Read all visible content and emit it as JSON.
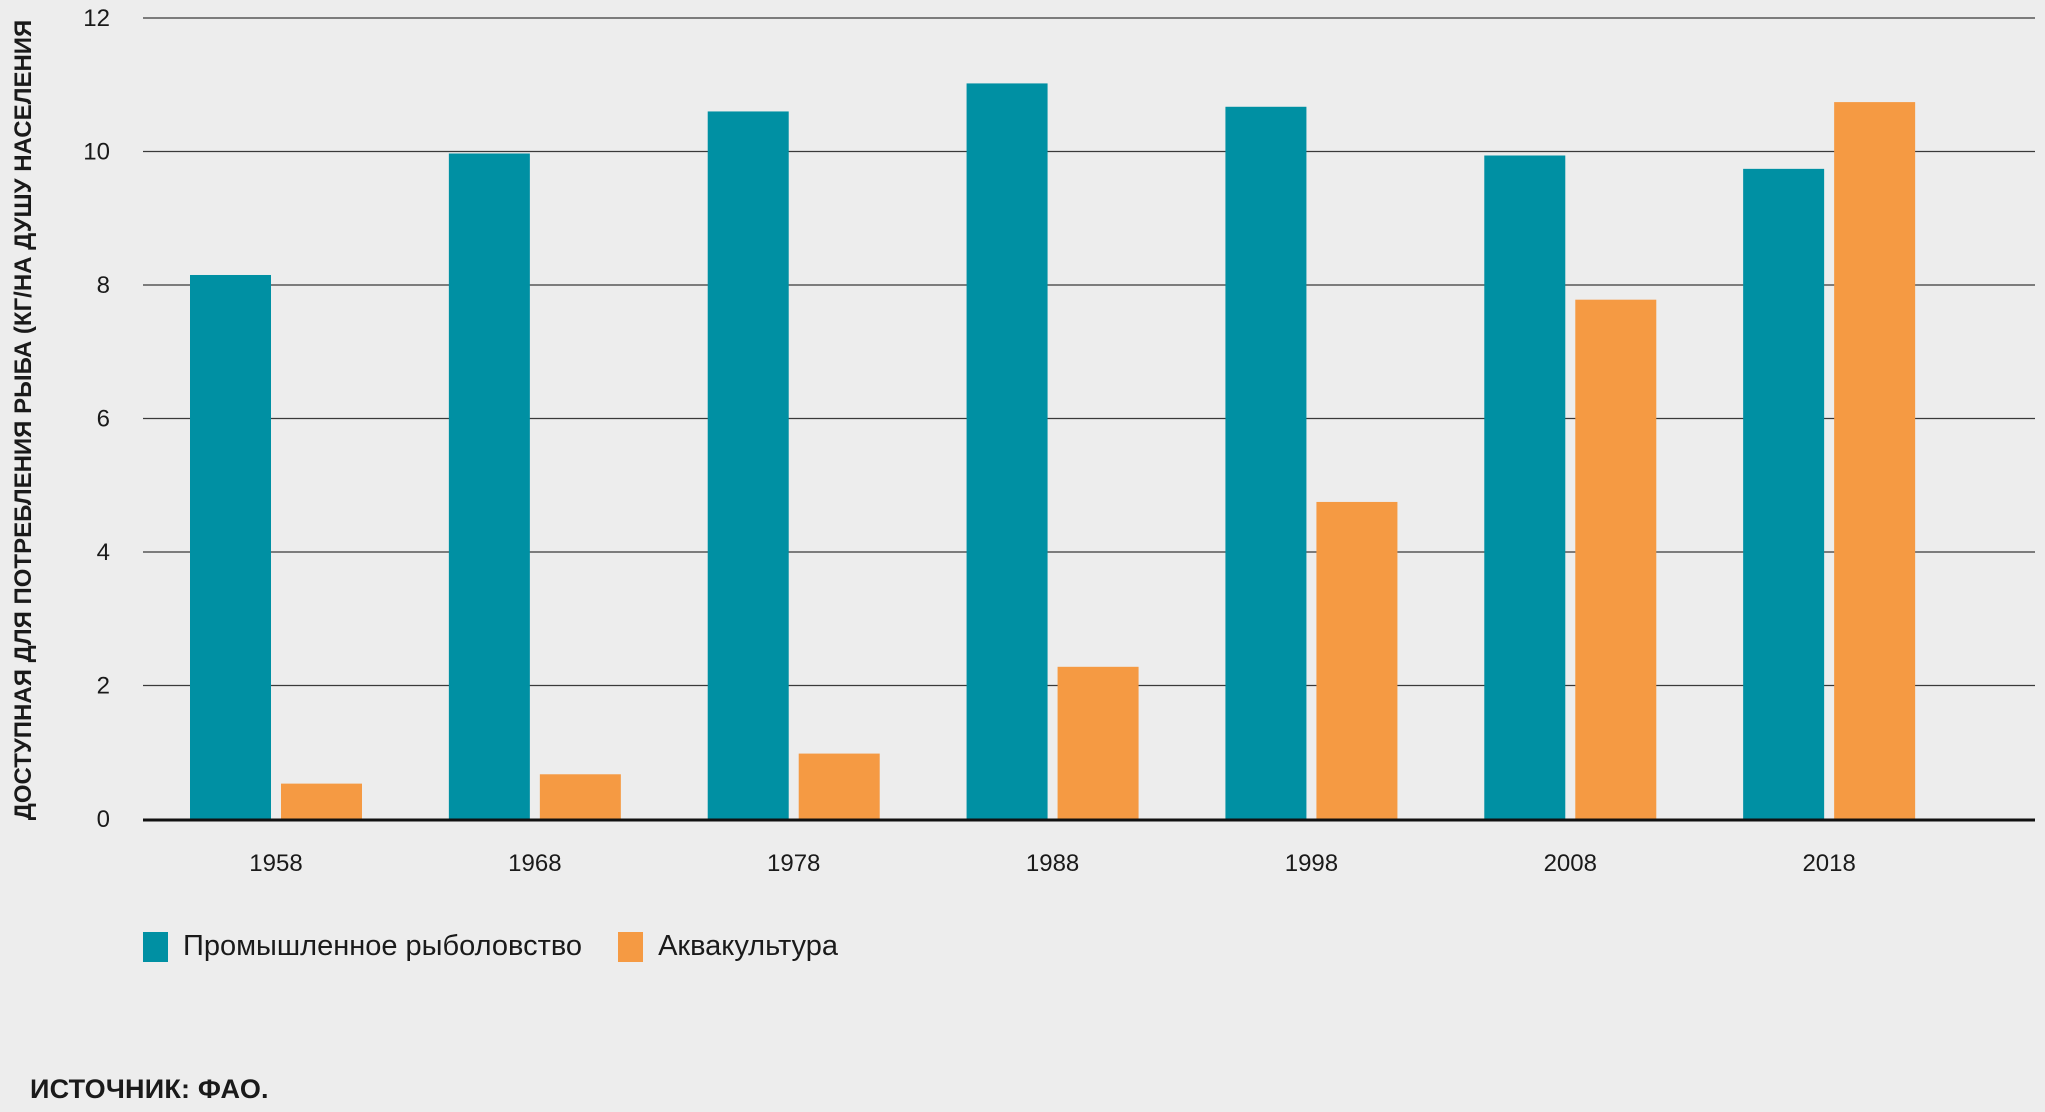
{
  "chart_data": {
    "type": "bar",
    "categories": [
      "1958",
      "1968",
      "1978",
      "1988",
      "1998",
      "2008",
      "2018"
    ],
    "series": [
      {
        "name": "Промышленное рыболовство",
        "color": "#0090a3",
        "values": [
          8.15,
          9.97,
          10.6,
          11.02,
          10.67,
          9.94,
          9.74
        ]
      },
      {
        "name": "Аквакультура",
        "color": "#f59a43",
        "values": [
          0.53,
          0.67,
          0.98,
          2.28,
          4.75,
          7.78,
          10.74
        ]
      }
    ],
    "ylabel": "ДОСТУПНАЯ ДЛЯ ПОТРЕБЛЕНИЯ РЫБА (КГ/НА ДУШУ НАСЕЛЕНИЯ",
    "xlabel": "",
    "ylim": [
      0,
      12
    ],
    "yticks": [
      "0",
      "2",
      "4",
      "6",
      "8",
      "10",
      "12"
    ],
    "grid": true,
    "legend_position": "bottom-left"
  },
  "source_note": "ИСТОЧНИК: ФАО."
}
